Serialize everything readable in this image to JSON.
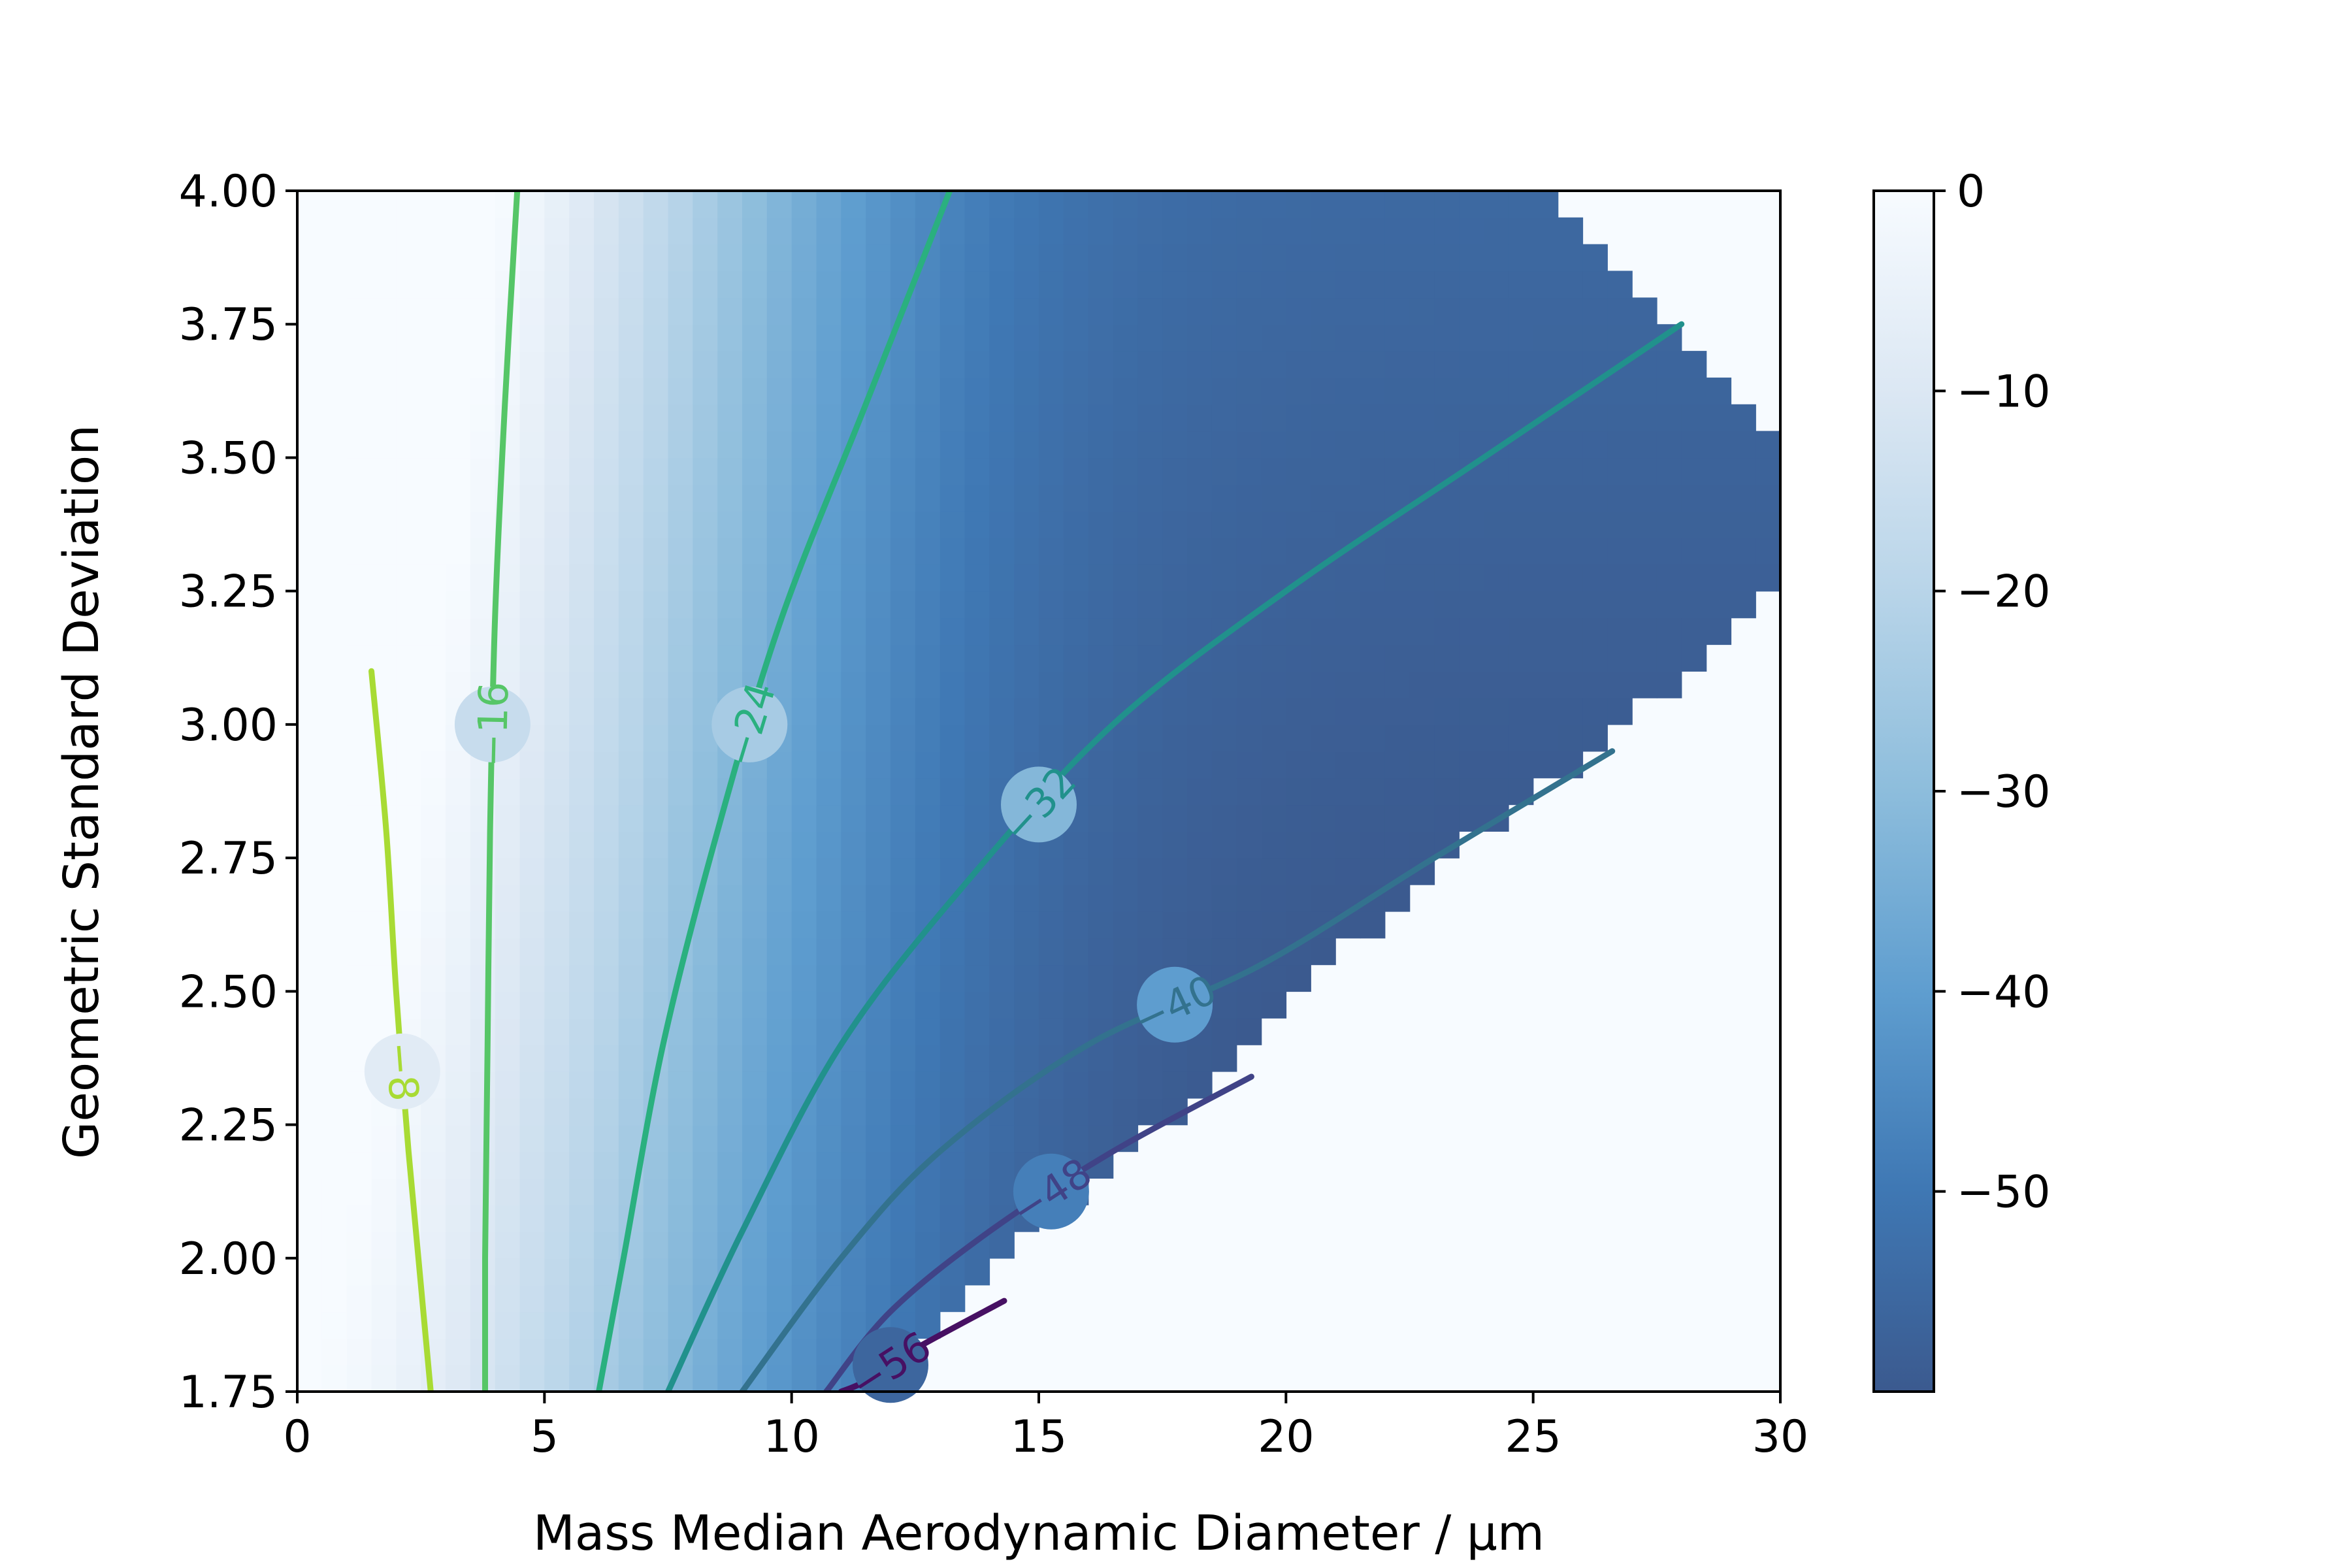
{
  "chart_data": {
    "type": "heatmap",
    "title": "",
    "xlabel": "Mass Median Aerodynamic Diameter / μm",
    "ylabel": "Geometric Standard Deviation",
    "xlim": [
      0,
      30
    ],
    "ylim": [
      1.75,
      4.0
    ],
    "x_ticks": [
      "0",
      "5",
      "10",
      "15",
      "20",
      "25",
      "30"
    ],
    "y_ticks": [
      "1.75",
      "2.00",
      "2.25",
      "2.50",
      "2.75",
      "3.00",
      "3.25",
      "3.50",
      "3.75",
      "4.00"
    ],
    "grid": false,
    "colormap": "Blues_r",
    "colorbar": {
      "range": [
        -60,
        0
      ],
      "ticks": [
        "0",
        "−10",
        "−20",
        "−30",
        "−40",
        "−50"
      ],
      "tick_values": [
        0,
        -10,
        -20,
        -30,
        -40,
        -50
      ]
    },
    "contours": [
      {
        "level": -8,
        "label": "−8",
        "color": "#a8db34",
        "points": [
          [
            1.5,
            3.1
          ],
          [
            1.8,
            2.8
          ],
          [
            2.0,
            2.5
          ],
          [
            2.25,
            2.2
          ],
          [
            2.5,
            1.95
          ],
          [
            2.7,
            1.75
          ]
        ]
      },
      {
        "level": -16,
        "label": "−16",
        "color": "#56c667",
        "points": [
          [
            4.45,
            4.0
          ],
          [
            4.2,
            3.6
          ],
          [
            4.0,
            3.2
          ],
          [
            3.9,
            2.8
          ],
          [
            3.85,
            2.4
          ],
          [
            3.8,
            2.0
          ],
          [
            3.8,
            1.75
          ]
        ]
      },
      {
        "level": -24,
        "label": "−24",
        "color": "#2ab07f",
        "points": [
          [
            13.2,
            4.0
          ],
          [
            11.5,
            3.6
          ],
          [
            9.8,
            3.2
          ],
          [
            8.5,
            2.8
          ],
          [
            7.4,
            2.4
          ],
          [
            6.6,
            2.0
          ],
          [
            6.1,
            1.75
          ]
        ]
      },
      {
        "level": -32,
        "label": "−32",
        "color": "#21918c",
        "points": [
          [
            28.0,
            3.75
          ],
          [
            24.0,
            3.5
          ],
          [
            20.0,
            3.25
          ],
          [
            16.5,
            3.0
          ],
          [
            13.5,
            2.7
          ],
          [
            11.0,
            2.4
          ],
          [
            9.0,
            2.05
          ],
          [
            7.5,
            1.75
          ]
        ]
      },
      {
        "level": -40,
        "label": "−40",
        "color": "#33728e",
        "points": [
          [
            26.6,
            2.95
          ],
          [
            23.0,
            2.75
          ],
          [
            19.5,
            2.55
          ],
          [
            16.0,
            2.4
          ],
          [
            13.0,
            2.2
          ],
          [
            11.0,
            2.0
          ],
          [
            9.0,
            1.75
          ]
        ]
      },
      {
        "level": -48,
        "label": "−48",
        "color": "#404387",
        "points": [
          [
            19.3,
            2.34
          ],
          [
            16.5,
            2.2
          ],
          [
            14.0,
            2.05
          ],
          [
            12.0,
            1.9
          ],
          [
            10.7,
            1.75
          ]
        ]
      },
      {
        "level": -56,
        "label": "−56",
        "color": "#471063",
        "points": [
          [
            14.3,
            1.92
          ],
          [
            12.5,
            1.83
          ],
          [
            11.5,
            1.77
          ],
          [
            11.0,
            1.75
          ]
        ]
      }
    ],
    "valid_region_right_edge": [
      [
        1.75,
        12.0
      ],
      [
        2.0,
        14.2
      ],
      [
        2.25,
        17.5
      ],
      [
        2.5,
        20.3
      ],
      [
        2.75,
        23.3
      ],
      [
        3.0,
        26.9
      ],
      [
        3.25,
        30.0
      ],
      [
        3.5,
        30.0
      ],
      [
        3.75,
        27.7
      ],
      [
        4.0,
        25.0
      ]
    ],
    "valid_region_left_edge": [
      [
        1.75,
        0.5
      ],
      [
        2.1,
        0.5
      ],
      [
        2.15,
        1.0
      ],
      [
        3.95,
        1.0
      ],
      [
        4.0,
        1.5
      ]
    ]
  }
}
